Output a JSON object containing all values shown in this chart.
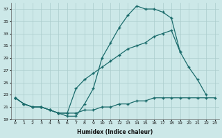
{
  "xlabel": "Humidex (Indice chaleur)",
  "bg_color": "#cce8e8",
  "grid_color": "#aacccc",
  "line_color": "#1a6b6b",
  "xlim": [
    -0.5,
    23.5
  ],
  "ylim": [
    19,
    38
  ],
  "yticks": [
    19,
    21,
    23,
    25,
    27,
    29,
    31,
    33,
    35,
    37
  ],
  "xticks": [
    0,
    1,
    2,
    3,
    4,
    5,
    6,
    7,
    8,
    9,
    10,
    11,
    12,
    13,
    14,
    15,
    16,
    17,
    18,
    19,
    20,
    21,
    22,
    23
  ],
  "line1_x": [
    0,
    1,
    2,
    3,
    4,
    5,
    6,
    7,
    8,
    9,
    10,
    11,
    12,
    13,
    14,
    15,
    16,
    17,
    18,
    19
  ],
  "line1_y": [
    22.5,
    21.5,
    21.0,
    21.0,
    20.5,
    20.0,
    19.5,
    19.5,
    21.5,
    24.0,
    29.0,
    31.5,
    34.0,
    36.0,
    37.5,
    37.0,
    37.0,
    36.5,
    35.5,
    30.0
  ],
  "line2_x": [
    0,
    1,
    2,
    3,
    4,
    5,
    6,
    7,
    8,
    9,
    10,
    11,
    12,
    13,
    14,
    15,
    16,
    17,
    18,
    19,
    20,
    21,
    22
  ],
  "line2_y": [
    22.5,
    21.5,
    21.0,
    21.0,
    20.5,
    20.0,
    20.0,
    24.0,
    25.5,
    26.5,
    27.5,
    28.5,
    29.5,
    30.5,
    31.0,
    31.5,
    32.5,
    33.0,
    33.5,
    30.0,
    27.5,
    25.5,
    23.0
  ],
  "line3_x": [
    0,
    1,
    2,
    3,
    4,
    5,
    6,
    7,
    8,
    9,
    10,
    11,
    12,
    13,
    14,
    15,
    16,
    17,
    18,
    19,
    20,
    21,
    22,
    23
  ],
  "line3_y": [
    22.5,
    21.5,
    21.0,
    21.0,
    20.5,
    20.0,
    20.0,
    20.0,
    20.5,
    20.5,
    21.0,
    21.0,
    21.5,
    21.5,
    22.0,
    22.0,
    22.5,
    22.5,
    22.5,
    22.5,
    22.5,
    22.5,
    22.5,
    22.5
  ]
}
